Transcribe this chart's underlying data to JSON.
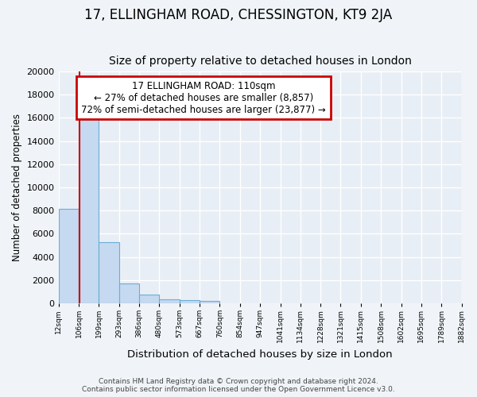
{
  "title": "17, ELLINGHAM ROAD, CHESSINGTON, KT9 2JA",
  "subtitle": "Size of property relative to detached houses in London",
  "xlabel": "Distribution of detached houses by size in London",
  "ylabel": "Number of detached properties",
  "bin_edges": [
    12,
    106,
    199,
    293,
    386,
    480,
    573,
    667,
    760,
    854,
    947,
    1041,
    1134,
    1228,
    1321,
    1415,
    1508,
    1602,
    1695,
    1789,
    1882
  ],
  "bar_heights": [
    8150,
    16600,
    5300,
    1750,
    750,
    320,
    270,
    210,
    0,
    0,
    0,
    0,
    0,
    0,
    0,
    0,
    0,
    0,
    0,
    0
  ],
  "bar_color": "#c5d9f0",
  "bar_edge_color": "#6baed6",
  "property_size": 110,
  "red_line_color": "#cc0000",
  "annotation_line1": "17 ELLINGHAM ROAD: 110sqm",
  "annotation_line2": "← 27% of detached houses are smaller (8,857)",
  "annotation_line3": "72% of semi-detached houses are larger (23,877) →",
  "annotation_box_color": "#ffffff",
  "annotation_box_edge": "#cc0000",
  "footer_line1": "Contains HM Land Registry data © Crown copyright and database right 2024.",
  "footer_line2": "Contains public sector information licensed under the Open Government Licence v3.0.",
  "ylim": [
    0,
    20000
  ],
  "bg_color": "#f0f4f8",
  "plot_bg_color": "#e8eef5",
  "title_fontsize": 12,
  "subtitle_fontsize": 10,
  "tick_labels": [
    "12sqm",
    "106sqm",
    "199sqm",
    "293sqm",
    "386sqm",
    "480sqm",
    "573sqm",
    "667sqm",
    "760sqm",
    "854sqm",
    "947sqm",
    "1041sqm",
    "1134sqm",
    "1228sqm",
    "1321sqm",
    "1415sqm",
    "1508sqm",
    "1602sqm",
    "1695sqm",
    "1789sqm",
    "1882sqm"
  ]
}
